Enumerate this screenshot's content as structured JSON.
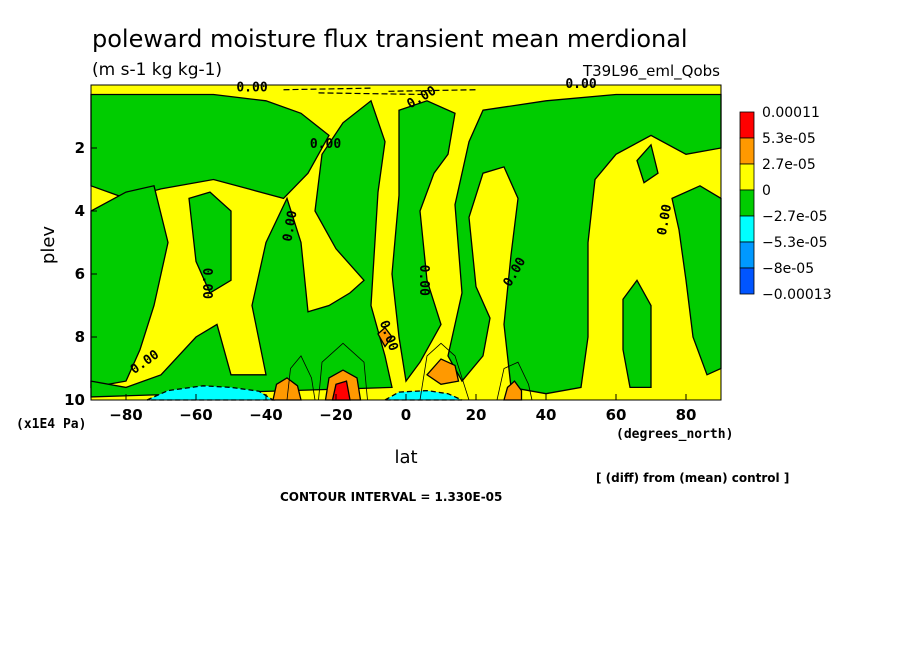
{
  "chart_data": {
    "type": "heatmap",
    "title": "poleward moisture flux transient mean merdional",
    "units": "(m s-1 kg kg-1)",
    "run_label": "T39L96_eml_Qobs",
    "xlabel": "lat",
    "x_unit_label": "(degrees_north)",
    "ylabel": "plev",
    "y_unit_label": "(x1E4 Pa)",
    "xlim": [
      -90,
      90
    ],
    "ylim": [
      10,
      0
    ],
    "x_ticks": [
      -80,
      -60,
      -40,
      -20,
      0,
      20,
      40,
      60,
      80
    ],
    "x_tick_labels": [
      "−80",
      "−60",
      "−40",
      "−20",
      "0",
      "20",
      "40",
      "60",
      "80"
    ],
    "y_ticks": [
      2,
      4,
      6,
      8,
      10
    ],
    "y_tick_labels": [
      "2",
      "4",
      "6",
      "8",
      "10"
    ],
    "contour_interval_text": "CONTOUR INTERVAL = 1.330E-05",
    "note": "[ (diff) from (mean) control ]",
    "contour_label": "0.00",
    "legend": {
      "levels": [
        "0.00011",
        "5.3e-05",
        "2.7e-05",
        "0",
        "−2.7e-05",
        "−5.3e-05",
        "−8e-05",
        "−0.00013"
      ],
      "colors": [
        "#ff0000",
        "#ff9900",
        "#ffff00",
        "#00cc00",
        "#00ffff",
        "#0099ff",
        "#0055ff"
      ]
    },
    "regions": {
      "background": {
        "level": "positive (0 to 2.7e-05)",
        "color": "#ffff00"
      },
      "negative": {
        "level": "negative (-2.7e-05 to 0)",
        "color": "#00cc00",
        "polygons": [
          [
            [
              -90,
              0.3
            ],
            [
              -55,
              0.3
            ],
            [
              -40,
              0.5
            ],
            [
              -30,
              0.9
            ],
            [
              -22,
              1.6
            ],
            [
              -28,
              2.8
            ],
            [
              -35,
              3.6
            ],
            [
              -45,
              3.3
            ],
            [
              -55,
              3.0
            ],
            [
              -70,
              3.3
            ],
            [
              -80,
              3.6
            ],
            [
              -90,
              3.2
            ]
          ],
          [
            [
              -80,
              3.4
            ],
            [
              -72,
              3.2
            ],
            [
              -68,
              5.0
            ],
            [
              -72,
              7.0
            ],
            [
              -76,
              8.4
            ],
            [
              -80,
              9.4
            ],
            [
              -90,
              9.6
            ],
            [
              -90,
              4.0
            ]
          ],
          [
            [
              -62,
              3.6
            ],
            [
              -56,
              3.4
            ],
            [
              -50,
              4.0
            ],
            [
              -50,
              6.2
            ],
            [
              -56,
              6.6
            ],
            [
              -60,
              5.6
            ]
          ],
          [
            [
              -70,
              9.2
            ],
            [
              -60,
              8.0
            ],
            [
              -54,
              7.6
            ],
            [
              -50,
              9.2
            ],
            [
              -40,
              9.2
            ],
            [
              -44,
              7.0
            ],
            [
              -40,
              5.0
            ],
            [
              -34,
              3.6
            ],
            [
              -30,
              5.0
            ],
            [
              -28,
              7.2
            ],
            [
              -22,
              7.0
            ],
            [
              -16,
              6.6
            ],
            [
              -12,
              6.2
            ],
            [
              -20,
              5.2
            ],
            [
              -26,
              4.0
            ],
            [
              -24,
              2.2
            ],
            [
              -18,
              1.2
            ],
            [
              -10,
              0.5
            ],
            [
              -6,
              1.8
            ],
            [
              -8,
              3.4
            ],
            [
              -10,
              7.0
            ],
            [
              -6,
              8.6
            ],
            [
              -4,
              9.6
            ],
            [
              -90,
              9.9
            ],
            [
              -90,
              9.4
            ],
            [
              -80,
              9.6
            ]
          ],
          [
            [
              -2,
              0.8
            ],
            [
              6,
              0.5
            ],
            [
              14,
              0.9
            ],
            [
              12,
              2.2
            ],
            [
              8,
              2.8
            ],
            [
              4,
              4.0
            ],
            [
              6,
              6.2
            ],
            [
              10,
              7.6
            ],
            [
              4,
              8.8
            ],
            [
              0,
              9.4
            ],
            [
              -2,
              8.0
            ],
            [
              -4,
              6.0
            ],
            [
              -2,
              3.5
            ]
          ],
          [
            [
              22,
              0.8
            ],
            [
              40,
              0.5
            ],
            [
              60,
              0.3
            ],
            [
              90,
              0.3
            ],
            [
              90,
              2.0
            ],
            [
              80,
              2.2
            ],
            [
              70,
              1.6
            ],
            [
              60,
              2.2
            ],
            [
              54,
              3.0
            ],
            [
              52,
              5.0
            ],
            [
              52,
              8.0
            ],
            [
              50,
              9.6
            ],
            [
              40,
              9.8
            ],
            [
              30,
              9.6
            ],
            [
              28,
              7.6
            ],
            [
              30,
              5.4
            ],
            [
              32,
              3.6
            ],
            [
              28,
              2.6
            ],
            [
              22,
              2.8
            ],
            [
              18,
              4.2
            ],
            [
              20,
              6.4
            ],
            [
              24,
              7.4
            ],
            [
              22,
              8.6
            ],
            [
              16,
              9.4
            ],
            [
              12,
              8.6
            ],
            [
              16,
              6.6
            ],
            [
              14,
              3.8
            ],
            [
              18,
              1.8
            ]
          ],
          [
            [
              62,
              6.8
            ],
            [
              66,
              6.2
            ],
            [
              70,
              7.0
            ],
            [
              70,
              9.6
            ],
            [
              64,
              9.6
            ],
            [
              62,
              8.4
            ]
          ],
          [
            [
              76,
              3.6
            ],
            [
              84,
              3.2
            ],
            [
              90,
              3.6
            ],
            [
              90,
              9.0
            ],
            [
              86,
              9.2
            ],
            [
              82,
              8.0
            ],
            [
              80,
              6.2
            ],
            [
              78,
              4.6
            ]
          ],
          [
            [
              66,
              2.4
            ],
            [
              70,
              1.9
            ],
            [
              72,
              2.8
            ],
            [
              68,
              3.1
            ]
          ]
        ]
      },
      "negative2": {
        "level": "-5.3e-05 to -2.7e-05",
        "color": "#00ffff",
        "polygons": [
          [
            [
              -74,
              10
            ],
            [
              -68,
              9.7
            ],
            [
              -58,
              9.55
            ],
            [
              -50,
              9.6
            ],
            [
              -42,
              9.72
            ],
            [
              -38,
              10
            ]
          ],
          [
            [
              -6,
              10
            ],
            [
              -2,
              9.75
            ],
            [
              6,
              9.7
            ],
            [
              12,
              9.8
            ],
            [
              16,
              10
            ]
          ]
        ]
      },
      "positive2": {
        "level": "2.7e-05 to 5.3e-05",
        "color": "#ff9900",
        "polygons": [
          [
            [
              -38,
              10
            ],
            [
              -37,
              9.5
            ],
            [
              -34,
              9.3
            ],
            [
              -31,
              9.55
            ],
            [
              -30,
              10
            ]
          ],
          [
            [
              -23,
              10
            ],
            [
              -22,
              9.3
            ],
            [
              -18,
              9.05
            ],
            [
              -14,
              9.3
            ],
            [
              -13,
              10
            ]
          ],
          [
            [
              6,
              9.2
            ],
            [
              10,
              8.7
            ],
            [
              14,
              8.9
            ],
            [
              15,
              9.4
            ],
            [
              10,
              9.5
            ]
          ],
          [
            [
              -8,
              7.9
            ],
            [
              -6,
              7.7
            ],
            [
              -4,
              8.0
            ],
            [
              -6,
              8.3
            ]
          ],
          [
            [
              28,
              10
            ],
            [
              29,
              9.6
            ],
            [
              31,
              9.4
            ],
            [
              33,
              9.7
            ],
            [
              33,
              10
            ]
          ]
        ]
      },
      "positive3": {
        "level": "5.3e-05 to 0.00011",
        "color": "#ff0000",
        "polygons": [
          [
            [
              -21,
              10
            ],
            [
              -20,
              9.5
            ],
            [
              -17,
              9.4
            ],
            [
              -16,
              10
            ]
          ]
        ]
      }
    }
  }
}
